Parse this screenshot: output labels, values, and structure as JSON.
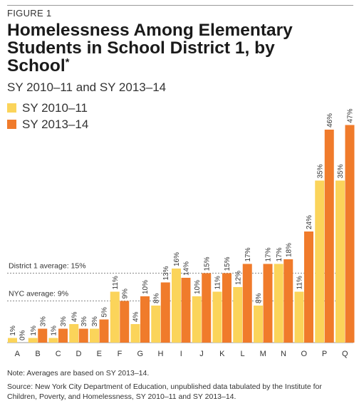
{
  "figure_label": "FIGURE 1",
  "title": "Homelessness Among Elementary Students in School District 1, by School",
  "title_marker": "*",
  "subtitle": "SY 2010–11 and SY 2013–14",
  "colors": {
    "series1": "#fbd45a",
    "series2": "#f07b2b",
    "text": "#333333",
    "rule": "#9a9a9a"
  },
  "chart_data": {
    "type": "bar",
    "categories": [
      "A",
      "B",
      "C",
      "D",
      "E",
      "F",
      "G",
      "H",
      "I",
      "J",
      "K",
      "L",
      "M",
      "N",
      "O",
      "P",
      "Q"
    ],
    "series": [
      {
        "name": "SY 2010–11",
        "values": [
          1,
          1,
          1,
          4,
          3,
          11,
          4,
          8,
          16,
          10,
          11,
          12,
          8,
          17,
          11,
          35,
          35
        ]
      },
      {
        "name": "SY 2013–14",
        "values": [
          0,
          3,
          3,
          3,
          5,
          9,
          10,
          13,
          14,
          15,
          15,
          17,
          17,
          18,
          24,
          46,
          47
        ]
      }
    ],
    "value_suffix": "%",
    "ylim": [
      0,
      50
    ],
    "legend_position": "top-left",
    "reference_lines": [
      {
        "label": "District 1 average: 15%",
        "value": 15
      },
      {
        "label": "NYC average: 9%",
        "value": 9
      }
    ]
  },
  "note": "Note: Averages are based on SY 2013–14.",
  "source": "Source: New York City Department of Education, unpublished data tabulated by the Institute for Children, Poverty, and Homelessness, SY 2010–11 and SY 2013–14."
}
